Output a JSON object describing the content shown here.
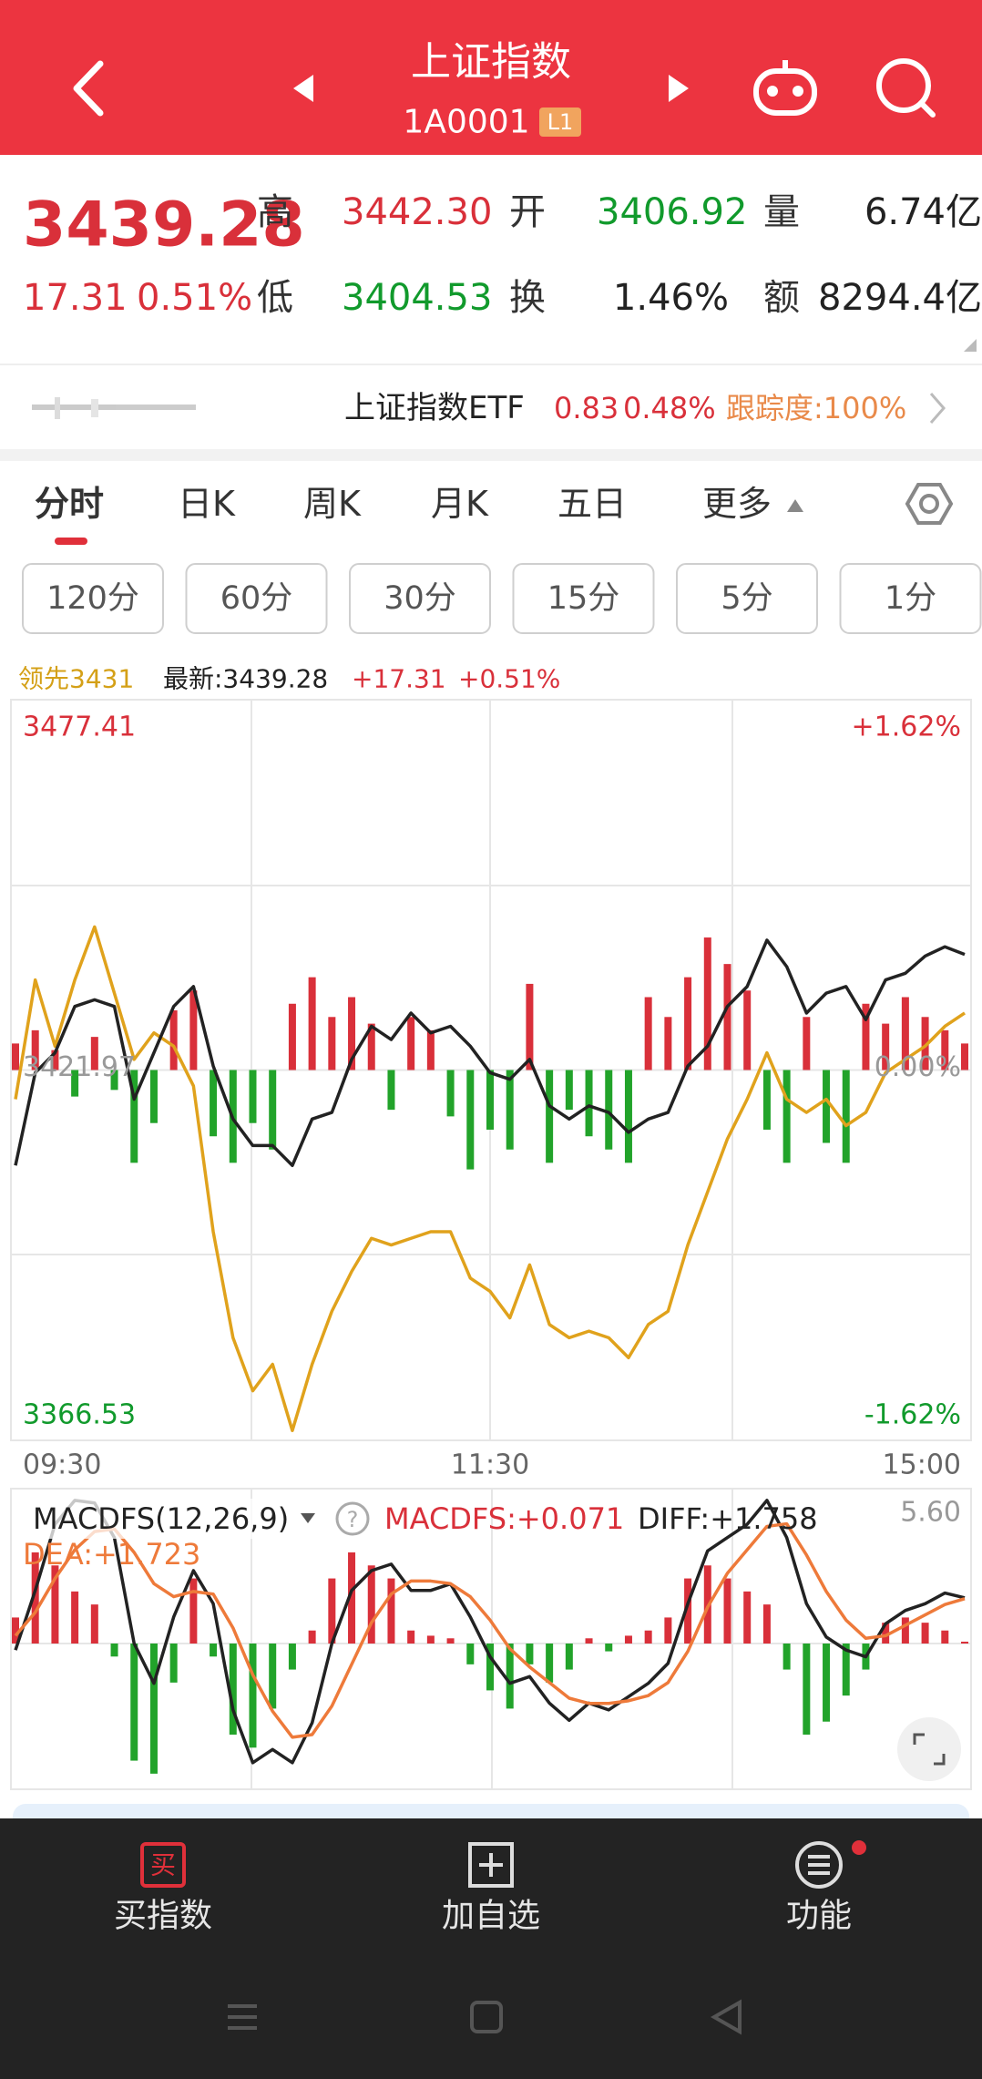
{
  "header": {
    "title": "上证指数",
    "code": "1A0001",
    "badge": "L1"
  },
  "quote": {
    "price": "3439.28",
    "change": "17.31",
    "change_pct": "0.51%",
    "high_label": "高",
    "high": "3442.30",
    "open_label": "开",
    "open": "3406.92",
    "volume_label": "量",
    "volume": "6.74亿",
    "low_label": "低",
    "low": "3404.53",
    "turnover_label": "换",
    "turnover": "1.46%",
    "amount_label": "额",
    "amount": "8294.4亿"
  },
  "etf": {
    "name": "上证指数ETF",
    "price": "0.83",
    "change_pct": "0.48%",
    "tracking": "跟踪度:100%"
  },
  "tabs": [
    "分时",
    "日K",
    "周K",
    "月K",
    "五日",
    "更多"
  ],
  "periods": [
    "120分",
    "60分",
    "30分",
    "15分",
    "5分",
    "1分"
  ],
  "legend": {
    "lead": "领先3431",
    "latest": "最新:3439.28",
    "change": "+17.31",
    "change_pct": "+0.51%"
  },
  "macd": {
    "name": "MACDFS(12,26,9)",
    "help": "?",
    "macdfs": "MACDFS:+0.071",
    "diff": "DIFF:+1.758",
    "dea": "DEA:+1.723"
  },
  "nav": [
    {
      "icon_text": "买",
      "label": "买指数"
    },
    {
      "label": "加自选"
    },
    {
      "label": "功能"
    }
  ],
  "chart_data": [
    {
      "type": "line",
      "x": [
        0,
        5,
        10,
        15,
        20,
        25,
        30,
        35,
        40,
        45,
        50,
        55,
        60,
        65,
        70,
        75,
        80,
        85,
        90,
        95,
        100,
        105,
        110,
        115,
        120,
        125,
        130,
        135,
        140,
        145,
        150,
        155,
        160,
        165,
        170,
        175,
        180,
        185,
        190,
        195,
        200,
        205,
        210,
        215,
        220,
        225,
        230,
        235,
        240
      ],
      "xlim": [
        0,
        240
      ],
      "xticks": [
        {
          "value": 0,
          "label": "09:30"
        },
        {
          "value": 120,
          "label": "11:30"
        },
        {
          "value": 240,
          "label": "15:00"
        }
      ],
      "ylim": [
        3366.53,
        3477.41
      ],
      "yticks": [
        3477.41,
        3421.97,
        3366.53
      ],
      "y2lim": [
        -1.62,
        1.62
      ],
      "y2ticks": [
        {
          "value": 1.62,
          "label": "+1.62%"
        },
        {
          "value": 0,
          "label": "0.00%"
        },
        {
          "value": -1.62,
          "label": "-1.62%"
        }
      ],
      "series": [
        {
          "color": "#e0a21c",
          "values": [
            3417.6,
            3435.46,
            3425.54,
            3435.46,
            3443.4,
            3433.48,
            3423.56,
            3427.53,
            3425.54,
            3419.59,
            3397.76,
            3381.89,
            3373.95,
            3377.92,
            3368.0,
            3377.92,
            3385.86,
            3391.81,
            3396.77,
            3395.78,
            3396.77,
            3397.76,
            3397.76,
            3390.82,
            3388.84,
            3384.87,
            3392.8,
            3383.87,
            3381.89,
            3382.88,
            3381.89,
            3378.91,
            3383.87,
            3385.86,
            3395.78,
            3403.72,
            3411.65,
            3417.6,
            3424.55,
            3417.6,
            3415.62,
            3417.6,
            3413.64,
            3415.62,
            3421.57,
            3423.56,
            3425.54,
            3428.52,
            3430.5
          ]
        },
        {
          "color": "#222222",
          "values": [
            3407.68,
            3421.57,
            3424.55,
            3431.49,
            3432.49,
            3431.49,
            3417.6,
            3424.55,
            3431.49,
            3434.47,
            3422.57,
            3414.63,
            3410.66,
            3410.66,
            3407.68,
            3414.63,
            3415.62,
            3423.56,
            3428.52,
            3426.53,
            3430.5,
            3427.53,
            3428.52,
            3425.54,
            3421.57,
            3420.58,
            3423.56,
            3416.61,
            3414.63,
            3416.61,
            3415.62,
            3412.64,
            3414.63,
            3415.62,
            3422.57,
            3425.54,
            3431.49,
            3434.47,
            3441.41,
            3437.45,
            3430.5,
            3433.48,
            3434.47,
            3429.51,
            3435.46,
            3436.45,
            3439.03,
            3440.42,
            3439.28
          ]
        }
      ],
      "bars": {
        "up_color": "#d9303a",
        "down_color": "#22a32a",
        "values": [
          3.97,
          5.95,
          2.98,
          -3.97,
          4.96,
          -2.98,
          -13.89,
          -7.94,
          8.93,
          11.9,
          -9.92,
          -13.89,
          -7.94,
          -11.9,
          9.92,
          13.89,
          7.94,
          10.91,
          6.94,
          -5.95,
          7.94,
          5.95,
          -6.94,
          -14.88,
          -8.93,
          -11.9,
          12.9,
          -13.89,
          -5.95,
          -9.92,
          -11.9,
          -13.89,
          10.91,
          7.94,
          13.89,
          19.84,
          15.87,
          11.9,
          -8.93,
          -13.89,
          7.94,
          -10.91,
          -13.89,
          9.92,
          6.94,
          10.91,
          7.94,
          5.95,
          3.97
        ]
      }
    },
    {
      "type": "macd",
      "ylim": [
        -5.6,
        5.6
      ],
      "yticks": [
        {
          "value": 5.6,
          "label": "5.60"
        }
      ],
      "series": [
        {
          "color": "#222222",
          "values": [
            -0.25,
            2.04,
            4.58,
            5.5,
            5.4,
            4.07,
            0.0,
            -1.53,
            1.02,
            2.8,
            1.53,
            -2.55,
            -4.58,
            -4.07,
            -4.58,
            -3.05,
            0.0,
            2.04,
            2.8,
            3.05,
            2.04,
            2.04,
            2.29,
            1.02,
            -0.51,
            -1.53,
            -1.27,
            -2.29,
            -2.95,
            -2.29,
            -2.55,
            -2.04,
            -1.53,
            -0.76,
            1.53,
            3.56,
            4.07,
            4.58,
            5.5,
            4.07,
            1.53,
            0.25,
            -0.25,
            -0.51,
            0.76,
            1.27,
            1.53,
            1.94,
            1.758
          ]
        },
        {
          "color": "#ee7a3a",
          "values": [
            0.3,
            1.2,
            2.5,
            3.6,
            4.3,
            4.4,
            3.5,
            2.3,
            1.8,
            2.0,
            1.9,
            0.6,
            -1.2,
            -2.6,
            -3.6,
            -3.5,
            -2.4,
            -0.8,
            0.8,
            1.9,
            2.4,
            2.4,
            2.3,
            1.8,
            0.9,
            -0.2,
            -0.9,
            -1.5,
            -2.1,
            -2.3,
            -2.3,
            -2.2,
            -2.0,
            -1.5,
            -0.3,
            1.4,
            2.7,
            3.6,
            4.5,
            4.6,
            3.4,
            2.0,
            0.9,
            0.2,
            0.3,
            0.7,
            1.1,
            1.5,
            1.723
          ]
        }
      ],
      "bars": {
        "up_color": "#d9303a",
        "down_color": "#22a32a",
        "values": [
          1.0,
          3.5,
          3.0,
          2.0,
          1.5,
          -0.5,
          -4.5,
          -5.0,
          -1.5,
          2.5,
          -0.5,
          -3.5,
          -4.0,
          -2.5,
          -1.0,
          0.5,
          2.5,
          3.5,
          3.0,
          2.5,
          0.5,
          0.3,
          0.2,
          -0.8,
          -1.8,
          -2.5,
          -0.8,
          -1.5,
          -1.0,
          0.2,
          -0.3,
          0.3,
          0.5,
          1.0,
          2.5,
          3.0,
          2.5,
          2.0,
          1.5,
          -1.0,
          -3.5,
          -3.0,
          -2.0,
          -1.0,
          0.8,
          1.0,
          0.8,
          0.5,
          0.071
        ]
      }
    }
  ]
}
